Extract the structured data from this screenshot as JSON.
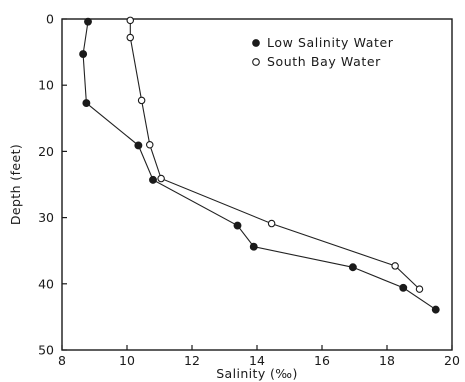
{
  "chart_data": {
    "type": "line",
    "xlabel": "Salinity (‰)",
    "ylabel": "Depth (feet)",
    "xlim": [
      8,
      20
    ],
    "ylim": [
      50,
      0
    ],
    "x_ticks": [
      "8",
      "10",
      "12",
      "14",
      "16",
      "18",
      "20"
    ],
    "y_ticks": [
      "0",
      "10",
      "20",
      "30",
      "40",
      "50"
    ],
    "legend_position": "top-right",
    "grid": false,
    "series": [
      {
        "name": "Low Salinity Water",
        "marker": "filled-circle",
        "points": [
          {
            "x": 8.8,
            "y": 0.4
          },
          {
            "x": 8.65,
            "y": 5.3
          },
          {
            "x": 8.75,
            "y": 12.7
          },
          {
            "x": 10.35,
            "y": 19.1
          },
          {
            "x": 10.8,
            "y": 24.3
          },
          {
            "x": 13.4,
            "y": 31.2
          },
          {
            "x": 13.9,
            "y": 34.4
          },
          {
            "x": 16.95,
            "y": 37.5
          },
          {
            "x": 18.5,
            "y": 40.6
          },
          {
            "x": 19.5,
            "y": 43.9
          }
        ]
      },
      {
        "name": "South Bay Water",
        "marker": "open-circle",
        "points": [
          {
            "x": 10.1,
            "y": 0.2
          },
          {
            "x": 10.1,
            "y": 2.8
          },
          {
            "x": 10.45,
            "y": 12.3
          },
          {
            "x": 10.7,
            "y": 19.0
          },
          {
            "x": 11.05,
            "y": 24.1
          },
          {
            "x": 14.45,
            "y": 30.9
          },
          {
            "x": 18.25,
            "y": 37.3
          },
          {
            "x": 19.0,
            "y": 40.8
          }
        ]
      }
    ]
  }
}
